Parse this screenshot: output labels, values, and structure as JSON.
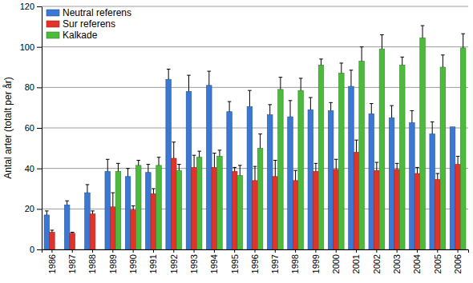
{
  "chart_data": {
    "type": "bar",
    "y_label": "Antal arter (totalt per år)",
    "categories": [
      "1986",
      "1987",
      "1988",
      "1989",
      "1990",
      "1991",
      "1992",
      "1993",
      "1994",
      "1995",
      "1996",
      "1997",
      "1998",
      "1999",
      "2000",
      "2001",
      "2002",
      "2003",
      "2004",
      "2005",
      "2006"
    ],
    "series": [
      {
        "name": "Neutral referens",
        "color": "#3a78d4",
        "values": [
          17,
          22,
          28,
          38.5,
          36,
          38,
          84,
          78,
          81,
          68,
          70.5,
          66.5,
          65.5,
          69,
          68.5,
          80.5,
          67,
          65,
          62.5,
          57,
          60.5
        ],
        "errors": [
          2,
          2,
          4,
          6,
          4,
          4,
          5,
          8,
          7,
          5,
          8,
          5,
          8,
          6,
          4,
          8,
          5,
          6,
          6,
          6,
          null
        ]
      },
      {
        "name": "Sur referens",
        "color": "#e2332b",
        "values": [
          8.5,
          8,
          17.5,
          21,
          19.5,
          27.5,
          45,
          40.5,
          40.5,
          38.5,
          34,
          36,
          34,
          38.5,
          39.5,
          48,
          39,
          39.5,
          37.5,
          34.5,
          42
        ],
        "errors": [
          1,
          0.5,
          1.5,
          7,
          2,
          2.5,
          8,
          6,
          7,
          2,
          7,
          8,
          5,
          4,
          5,
          6,
          4,
          3,
          3,
          3,
          4
        ]
      },
      {
        "name": "Kalkade",
        "color": "#4cbb3c",
        "values": [
          null,
          null,
          null,
          38.5,
          41.5,
          41.5,
          39,
          45.5,
          46,
          36.5,
          50,
          79,
          78.5,
          91,
          87,
          93,
          99,
          91,
          104.5,
          90,
          99.5
        ],
        "errors": [
          null,
          null,
          null,
          4,
          2.5,
          4,
          3,
          3,
          3,
          5,
          7,
          6,
          6,
          3,
          5,
          7,
          7,
          4,
          6,
          6,
          7
        ]
      }
    ],
    "ylim": [
      0,
      120
    ],
    "yticks": [
      0,
      20,
      40,
      60,
      80,
      100,
      120
    ],
    "grid": true,
    "legend": "upper left"
  }
}
